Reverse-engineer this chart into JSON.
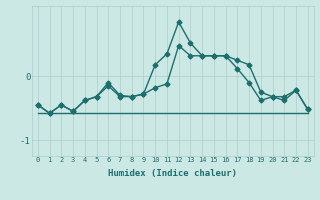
{
  "xlabel": "Humidex (Indice chaleur)",
  "x_values": [
    0,
    1,
    2,
    3,
    4,
    5,
    6,
    7,
    8,
    9,
    10,
    11,
    12,
    13,
    14,
    15,
    16,
    17,
    18,
    19,
    20,
    21,
    22,
    23
  ],
  "line1_y": [
    -0.45,
    -0.58,
    -0.45,
    -0.55,
    -0.38,
    -0.32,
    -0.15,
    -0.32,
    -0.32,
    -0.28,
    -0.18,
    -0.12,
    0.48,
    0.32,
    0.32,
    0.32,
    0.32,
    0.25,
    0.18,
    -0.25,
    -0.32,
    -0.32,
    -0.22,
    -0.52
  ],
  "line2_y": [
    -0.45,
    -0.58,
    -0.45,
    -0.55,
    -0.38,
    -0.32,
    -0.1,
    -0.3,
    -0.32,
    -0.28,
    0.18,
    0.35,
    0.85,
    0.52,
    0.32,
    0.32,
    0.32,
    0.12,
    -0.1,
    -0.38,
    -0.32,
    -0.38,
    -0.22,
    -0.52
  ],
  "line3_y": [
    -0.58,
    -0.58,
    -0.58,
    -0.58,
    -0.58,
    -0.58,
    -0.58,
    -0.58,
    -0.58,
    -0.58,
    -0.58,
    -0.58,
    -0.58,
    -0.58,
    -0.58,
    -0.58,
    -0.58,
    -0.58,
    -0.58,
    -0.58,
    -0.58,
    -0.58,
    -0.58,
    -0.58
  ],
  "line_color": "#1e6e6e",
  "bg_color": "#cce8e4",
  "grid_color": "#aaceca",
  "tick_color": "#1e6e6e",
  "ylim": [
    -1.25,
    1.1
  ],
  "yticks": [
    -1,
    0
  ],
  "ytick_labels": [
    "-1",
    "0"
  ],
  "marker": "D",
  "markersize": 2.5,
  "linewidth": 1.0
}
